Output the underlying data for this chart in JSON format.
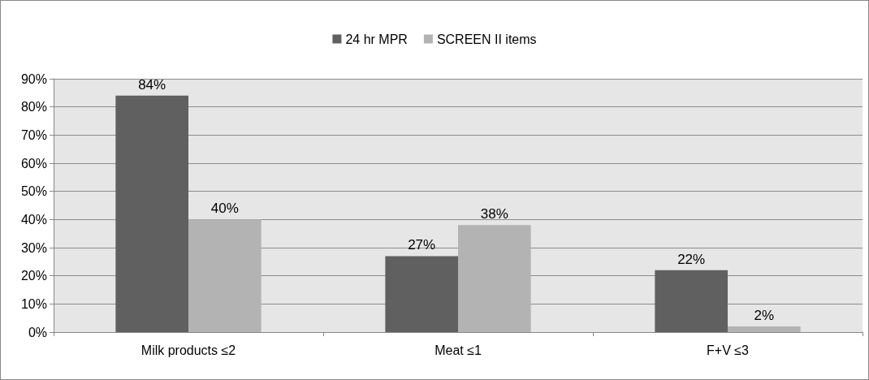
{
  "chart_data": {
    "type": "bar",
    "categories": [
      "Milk products ≤2",
      "Meat ≤1",
      "F+V ≤3"
    ],
    "series": [
      {
        "name": "24 hr MPR",
        "color": "#606060",
        "values": [
          84,
          27,
          22
        ],
        "value_labels": [
          "84%",
          "27%",
          "22%"
        ]
      },
      {
        "name": "SCREEN II items",
        "color": "#b3b3b3",
        "values": [
          40,
          38,
          2
        ],
        "value_labels": [
          "40%",
          "38%",
          "2%"
        ]
      }
    ],
    "ylim": [
      0,
      90
    ],
    "yticks": [
      {
        "value": 0,
        "label": "0%"
      },
      {
        "value": 10,
        "label": "10%"
      },
      {
        "value": 20,
        "label": "20%"
      },
      {
        "value": 30,
        "label": "30%"
      },
      {
        "value": 40,
        "label": "40%"
      },
      {
        "value": 50,
        "label": "50%"
      },
      {
        "value": 60,
        "label": "60%"
      },
      {
        "value": 70,
        "label": "70%"
      },
      {
        "value": 80,
        "label": "80%"
      },
      {
        "value": 90,
        "label": "90%"
      }
    ],
    "grid": "y",
    "legend": "top"
  }
}
